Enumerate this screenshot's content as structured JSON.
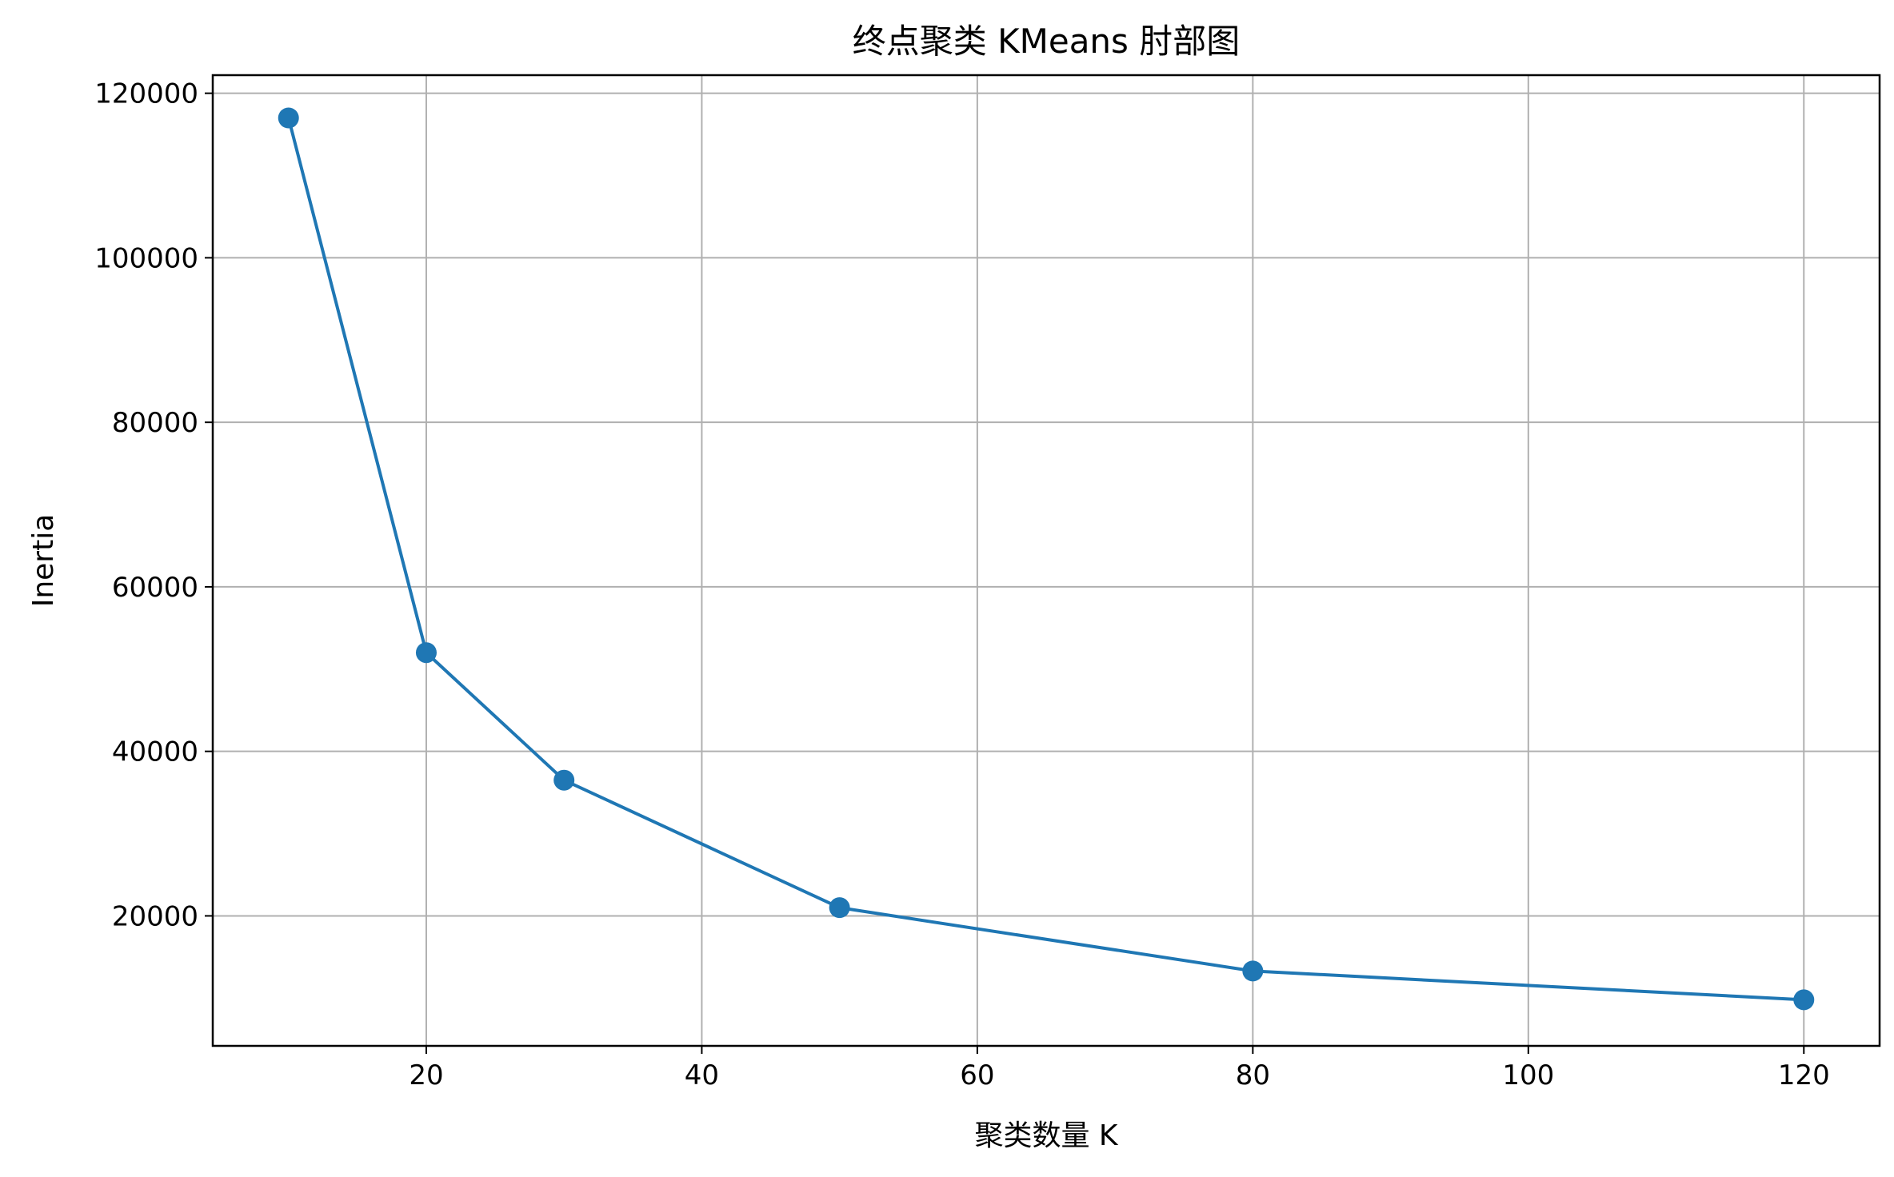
{
  "chart_data": {
    "type": "line",
    "title": "终点聚类 KMeans 肘部图",
    "xlabel": "聚类数量 K",
    "ylabel": "Inertia",
    "xlim": [
      4.5,
      125.5
    ],
    "ylim": [
      4200,
      122200
    ],
    "xticks": [
      20,
      40,
      60,
      80,
      100,
      120
    ],
    "yticks": [
      20000,
      40000,
      60000,
      80000,
      100000,
      120000
    ],
    "grid": true,
    "legend": "none",
    "series": [
      {
        "color": "#1f77b4",
        "marker": "circle",
        "points": [
          {
            "x": 10,
            "y": 117000
          },
          {
            "x": 20,
            "y": 52000
          },
          {
            "x": 30,
            "y": 36500
          },
          {
            "x": 50,
            "y": 21000
          },
          {
            "x": 80,
            "y": 13300
          },
          {
            "x": 120,
            "y": 9800
          }
        ]
      }
    ],
    "colors": {
      "grid": "#b0b0b0",
      "axis": "#000000",
      "line": "#1f77b4"
    }
  }
}
